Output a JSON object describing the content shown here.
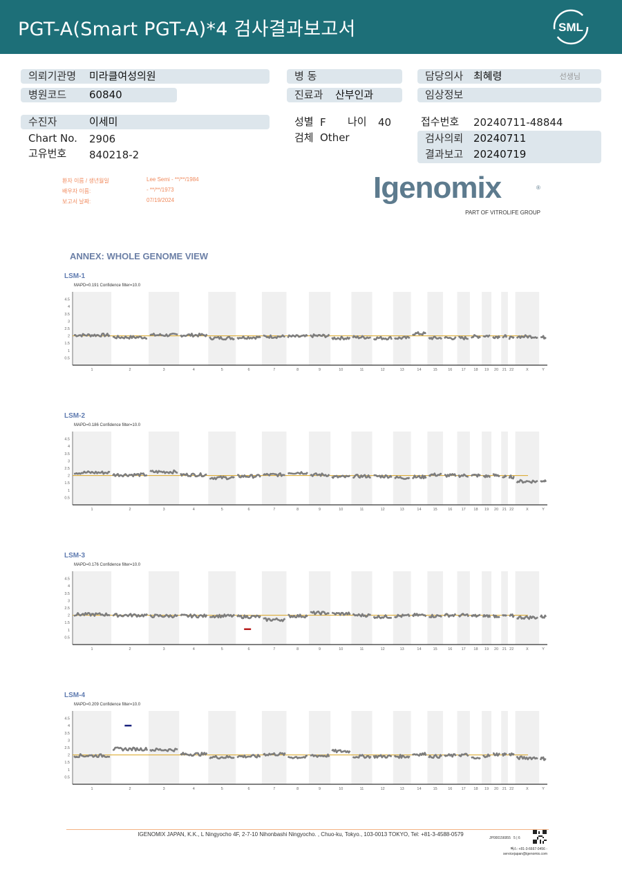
{
  "header": {
    "title": "PGT-A(Smart  PGT-A)*4 검사결과보고서",
    "logo_text": "SML",
    "bg_color": "#1d6f78"
  },
  "info": {
    "institution_label": "의뢰기관명",
    "institution": "미라클여성의원",
    "hospital_code_label": "병원코드",
    "hospital_code": "60840",
    "ward_label": "병  동",
    "ward": "",
    "department_label": "진료과",
    "department": "산부인과",
    "doctor_label": "담당의사",
    "doctor": "최혜령",
    "doctor_suffix": "선생님",
    "clinical_label": "임상정보",
    "clinical": "",
    "patient_label": "수진자",
    "patient": "이세미",
    "chart_label": "Chart No.",
    "chart_no": "2906",
    "id_label": "고유번호",
    "id_no": "840218-2",
    "sex_label": "성별",
    "sex": "F",
    "age_label": "나이",
    "age": "40",
    "specimen_label": "검체",
    "specimen": "Other",
    "receipt_label": "접수번호",
    "receipt_no": "20240711-48844",
    "request_label": "검사의뢰",
    "request_date": "20240711",
    "report_label": "결과보고",
    "report_date": "20240719"
  },
  "lab_info": {
    "patient_label": "환자 이름 / 생년월일",
    "patient_value": "Lee Semi - **/**/1984",
    "partner_label": "배우자 이름:",
    "partner_value": " - **/**/1973",
    "report_date_label": "보고서 날짜:",
    "report_date_value": "07/19/2024",
    "color": "#f08a5d"
  },
  "igenomix": {
    "name": "Igenomix",
    "tagline": "PART OF VITROLIFE GROUP"
  },
  "annex_title": "ANNEX: WHOLE GENOME VIEW",
  "chart_data": [
    {
      "type": "scatter",
      "title": "LSM-1",
      "subtitle": "MAPD=0.191 Confidence filter=10.0",
      "ylim": [
        0,
        5
      ],
      "yticks": [
        "4.5",
        "4",
        "3.5",
        "3",
        "2.5",
        "2",
        "1.5",
        "1",
        "0.5"
      ],
      "reference_line": 2,
      "categories": [
        "1",
        "2",
        "3",
        "4",
        "5",
        "6",
        "7",
        "8",
        "9",
        "10",
        "11",
        "12",
        "13",
        "14",
        "15",
        "16",
        "17",
        "18",
        "19",
        "20",
        "21",
        "22",
        "X",
        "Y"
      ],
      "segment_values": [
        2.05,
        1.9,
        2.05,
        2.05,
        1.85,
        1.9,
        1.95,
        1.95,
        2.0,
        1.85,
        1.9,
        1.85,
        1.85,
        2.15,
        1.85,
        1.85,
        1.85,
        1.95,
        2.0,
        1.95,
        1.95,
        1.85,
        1.95,
        1.9
      ],
      "abnormal": []
    },
    {
      "type": "scatter",
      "title": "LSM-2",
      "subtitle": "MAPD=0.186 Confidence filter=10.0",
      "ylim": [
        0,
        5
      ],
      "yticks": [
        "4.5",
        "4",
        "3.5",
        "3",
        "2.5",
        "2",
        "1.5",
        "1",
        "0.5"
      ],
      "reference_line": 2,
      "categories": [
        "1",
        "2",
        "3",
        "4",
        "5",
        "6",
        "7",
        "8",
        "9",
        "10",
        "11",
        "12",
        "13",
        "14",
        "15",
        "16",
        "17",
        "18",
        "19",
        "20",
        "21",
        "22",
        "X",
        "Y"
      ],
      "segment_values": [
        2.2,
        2.05,
        2.25,
        2.05,
        1.85,
        1.95,
        2.05,
        2.2,
        2.05,
        1.9,
        1.95,
        1.95,
        1.85,
        1.9,
        2.05,
        2.0,
        2.0,
        2.0,
        1.95,
        2.0,
        1.9,
        1.9,
        1.6,
        1.65
      ],
      "abnormal": []
    },
    {
      "type": "scatter",
      "title": "LSM-3",
      "subtitle": "MAPD=0.176 Confidence filter=10.0",
      "ylim": [
        0,
        5
      ],
      "yticks": [
        "4.5",
        "4",
        "3.5",
        "3",
        "2.5",
        "2",
        "1.5",
        "1",
        "0.5"
      ],
      "reference_line": 2,
      "categories": [
        "1",
        "2",
        "3",
        "4",
        "5",
        "6",
        "7",
        "8",
        "9",
        "10",
        "11",
        "12",
        "13",
        "14",
        "15",
        "16",
        "17",
        "18",
        "19",
        "20",
        "21",
        "22",
        "X",
        "Y"
      ],
      "segment_values": [
        2.05,
        2.0,
        1.95,
        1.95,
        1.95,
        1.9,
        1.7,
        1.95,
        2.15,
        2.1,
        2.0,
        1.9,
        1.95,
        2.0,
        1.95,
        2.0,
        2.0,
        1.95,
        1.95,
        1.95,
        1.95,
        1.95,
        1.85,
        1.9
      ],
      "abnormal": [
        {
          "chromosome": "6",
          "value": 1.05,
          "color": "#b71c1c"
        }
      ]
    },
    {
      "type": "scatter",
      "title": "LSM-4",
      "subtitle": "MAPD=0.209 Confidence filter=10.0",
      "ylim": [
        0,
        5
      ],
      "yticks": [
        "4.5",
        "4",
        "3.5",
        "3",
        "2.5",
        "2",
        "1.5",
        "1",
        "0.5"
      ],
      "reference_line": 2,
      "categories": [
        "1",
        "2",
        "3",
        "4",
        "5",
        "6",
        "7",
        "8",
        "9",
        "10",
        "11",
        "12",
        "13",
        "14",
        "15",
        "16",
        "17",
        "18",
        "19",
        "20",
        "21",
        "22",
        "X",
        "Y"
      ],
      "segment_values": [
        1.95,
        2.4,
        2.35,
        2.05,
        1.85,
        1.9,
        2.05,
        1.85,
        1.95,
        2.25,
        1.9,
        1.9,
        1.9,
        2.05,
        1.9,
        1.95,
        2.0,
        1.75,
        1.95,
        2.05,
        2.05,
        2.05,
        1.8,
        1.75
      ],
      "abnormal": [
        {
          "chromosome": "2",
          "value": 4.0,
          "color": "#1a237e"
        }
      ]
    }
  ],
  "footer": {
    "address": "IGENOMIX JAPAN, K.K., L Ningyocho 4F, 2-7-10 Nihonbashi Ningyocho. , Chuo-ku, Tokyo., 103-0013 TOKYO, Tel: +81-3-4588-0579",
    "doc_code": "JP000156955",
    "page": "5 | 6",
    "contact_line1": "팩스: +81-3-6667-0456 -",
    "contact_line2": "servicejapan@igenomix.com"
  }
}
